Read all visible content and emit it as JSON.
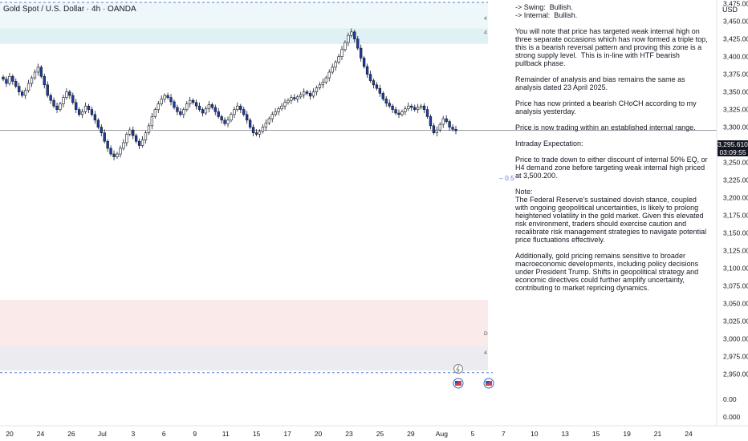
{
  "header": {
    "symbol_title": "Gold Spot / U.S. Dollar · 4h · OANDA",
    "currency": "USD"
  },
  "note": {
    "paragraphs": [
      "-> Swing:  Bullish.\n-> Internal:  Bullish.",
      "You will note that price has targeted weak internal high on three separate occasions which has now formed a triple top, this is a bearish reversal pattern and proving this zone is a strong supply level.  This is in-line with HTF bearish pullback phase.",
      "Remainder of analysis and bias remains the same as analysis dated 23 April 2025.",
      "Price has now printed a bearish CHoCH according to my analysis yesterday.",
      "Price is now trading within an established internal range.",
      "Intraday Expectation:",
      "Price to trade down to either discount of internal 50% EQ, or H4 demand zone before targeting weak internal high priced at 3,500.200.",
      "Note:\nThe Federal Reserve's sustained dovish stance, coupled with ongoing geopolitical uncertainties, is likely to prolong heightened volatility in the gold market. Given this elevated risk environment, traders should exercise caution and recalibrate risk management strategies to navigate potential price fluctuations effectively.",
      "Additionally, gold pricing remains sensitive to broader macroeconomic developments, including policy decisions under President Trump. Shifts in geopolitical strategy and economic directives could further amplify uncertainty, contributing to market repricing dynamics."
    ]
  },
  "price_tag": {
    "price": "3,295.610",
    "countdown": "03:09:55"
  },
  "colors": {
    "up": "#ffffff",
    "down": "#1e3fa8",
    "wick": "#131722",
    "supply_zone": "#dff1f4",
    "supply_zone_light": "#eef8fa",
    "demand_zone": "#fbeaea",
    "demand_zone_gray": "#ececf0",
    "dashed_line": "#5b7fd6",
    "current_price_line": "#787b86"
  },
  "annotations": {
    "eq_label": "0.5",
    "zone_small_labels": [
      "4",
      "4",
      "D",
      "4"
    ]
  },
  "chart_data": {
    "type": "candlestick",
    "title": "Gold Spot / U.S. Dollar · 4h · OANDA",
    "xlabel": "",
    "ylabel": "",
    "ylim": [
      2937,
      3478
    ],
    "y_ticks": [
      3475,
      3450,
      3425,
      3400,
      3375,
      3350,
      3325,
      3300,
      3275,
      3250,
      3225,
      3200,
      3175,
      3150,
      3125,
      3100,
      3075,
      3050,
      3025,
      3000,
      2975,
      2950
    ],
    "extra_y_ticks": [
      "0.00",
      "0.000"
    ],
    "x_ticks": [
      "20",
      "24",
      "26",
      "Jul",
      "3",
      "6",
      "9",
      "11",
      "15",
      "17",
      "20",
      "23",
      "25",
      "29",
      "Aug",
      "5",
      "7",
      "10",
      "13",
      "15",
      "19",
      "21",
      "24"
    ],
    "current_price": 3295.61,
    "supply_zone": [
      3418,
      3478
    ],
    "demand_zone": [
      2955,
      3055
    ],
    "internal_eq_50": 3228,
    "close_series": [
      3368,
      3362,
      3372,
      3365,
      3358,
      3350,
      3345,
      3352,
      3362,
      3370,
      3378,
      3385,
      3372,
      3360,
      3345,
      3338,
      3330,
      3325,
      3333,
      3342,
      3350,
      3345,
      3335,
      3325,
      3318,
      3322,
      3330,
      3325,
      3318,
      3310,
      3300,
      3292,
      3280,
      3270,
      3262,
      3258,
      3262,
      3270,
      3278,
      3290,
      3296,
      3288,
      3280,
      3274,
      3282,
      3292,
      3302,
      3315,
      3325,
      3333,
      3340,
      3345,
      3342,
      3336,
      3328,
      3322,
      3318,
      3325,
      3333,
      3338,
      3335,
      3330,
      3325,
      3320,
      3326,
      3332,
      3328,
      3322,
      3315,
      3310,
      3305,
      3310,
      3318,
      3325,
      3330,
      3325,
      3318,
      3310,
      3300,
      3292,
      3290,
      3294,
      3300,
      3306,
      3312,
      3318,
      3322,
      3326,
      3330,
      3335,
      3338,
      3342,
      3340,
      3343,
      3346,
      3350,
      3348,
      3344,
      3350,
      3356,
      3360,
      3364,
      3370,
      3378,
      3385,
      3392,
      3400,
      3410,
      3420,
      3430,
      3435,
      3425,
      3412,
      3398,
      3386,
      3375,
      3366,
      3360,
      3355,
      3348,
      3340,
      3334,
      3330,
      3325,
      3320,
      3318,
      3322,
      3326,
      3330,
      3328,
      3325,
      3328,
      3330,
      3325,
      3315,
      3302,
      3292,
      3296,
      3304,
      3312,
      3308,
      3300,
      3297,
      3295
    ]
  }
}
